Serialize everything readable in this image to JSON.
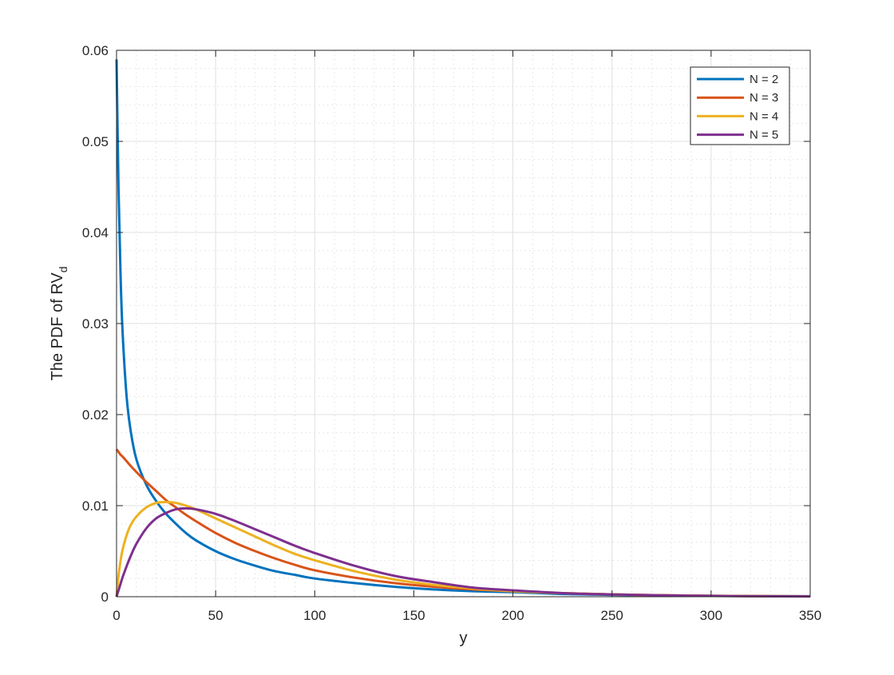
{
  "chart_data": {
    "type": "line",
    "title": "",
    "xlabel": "y",
    "ylabel": "The PDF of RV",
    "ylabel_subscript": "d",
    "xlim": [
      0,
      350
    ],
    "ylim": [
      0,
      0.06
    ],
    "x_ticks": [
      0,
      50,
      100,
      150,
      200,
      250,
      300,
      350
    ],
    "y_ticks": [
      0,
      0.01,
      0.02,
      0.03,
      0.04,
      0.05,
      0.06
    ],
    "x_tick_labels": [
      "0",
      "50",
      "100",
      "150",
      "200",
      "250",
      "300",
      "350"
    ],
    "y_tick_labels": [
      "0",
      "0.01",
      "0.02",
      "0.03",
      "0.04",
      "0.05",
      "0.06"
    ],
    "grid": true,
    "minor_grid": true,
    "legend_position": "top-right",
    "x": [
      0,
      1,
      2,
      3,
      5,
      7,
      10,
      15,
      20,
      25,
      30,
      35,
      40,
      50,
      60,
      70,
      80,
      90,
      100,
      120,
      140,
      160,
      180,
      200,
      225,
      250,
      275,
      300,
      325,
      350
    ],
    "series": [
      {
        "name": "N = 2",
        "color": "#0072BD",
        "values": [
          0.059,
          0.0448,
          0.0355,
          0.0293,
          0.0222,
          0.0184,
          0.0151,
          0.0123,
          0.0105,
          0.0091,
          0.008,
          0.007,
          0.0062,
          0.005,
          0.0041,
          0.0034,
          0.0028,
          0.0024,
          0.002,
          0.0015,
          0.0011,
          0.0008,
          0.0006,
          0.0005,
          0.0003,
          0.0002,
          0.00015,
          0.0001,
          7e-05,
          5e-05
        ]
      },
      {
        "name": "N = 3",
        "color": "#D95319",
        "values": [
          0.0162,
          0.0159,
          0.0156,
          0.0154,
          0.0149,
          0.0144,
          0.0137,
          0.0126,
          0.0116,
          0.0106,
          0.0098,
          0.009,
          0.0083,
          0.007,
          0.0059,
          0.005,
          0.0042,
          0.0035,
          0.0029,
          0.0021,
          0.0015,
          0.0011,
          0.0008,
          0.0006,
          0.0004,
          0.00025,
          0.00016,
          0.0001,
          7e-05,
          4e-05
        ]
      },
      {
        "name": "N = 4",
        "color": "#EDB120",
        "values": [
          0.0,
          0.0023,
          0.0039,
          0.0051,
          0.0067,
          0.0078,
          0.0088,
          0.0098,
          0.0103,
          0.0104,
          0.0103,
          0.01,
          0.0096,
          0.0086,
          0.0076,
          0.0066,
          0.0056,
          0.0047,
          0.004,
          0.0028,
          0.0019,
          0.0013,
          0.0009,
          0.0006,
          0.0004,
          0.00025,
          0.00015,
          0.0001,
          6e-05,
          4e-05
        ]
      },
      {
        "name": "N = 5",
        "color": "#7E2F8E",
        "values": [
          0.0,
          0.0007,
          0.0014,
          0.0021,
          0.0033,
          0.0044,
          0.0058,
          0.0075,
          0.0086,
          0.0092,
          0.0096,
          0.0097,
          0.0096,
          0.0091,
          0.0083,
          0.0074,
          0.0065,
          0.0056,
          0.0048,
          0.0034,
          0.0023,
          0.0016,
          0.001,
          0.0007,
          0.0004,
          0.00025,
          0.00015,
          9e-05,
          5e-05,
          3e-05
        ]
      }
    ]
  }
}
